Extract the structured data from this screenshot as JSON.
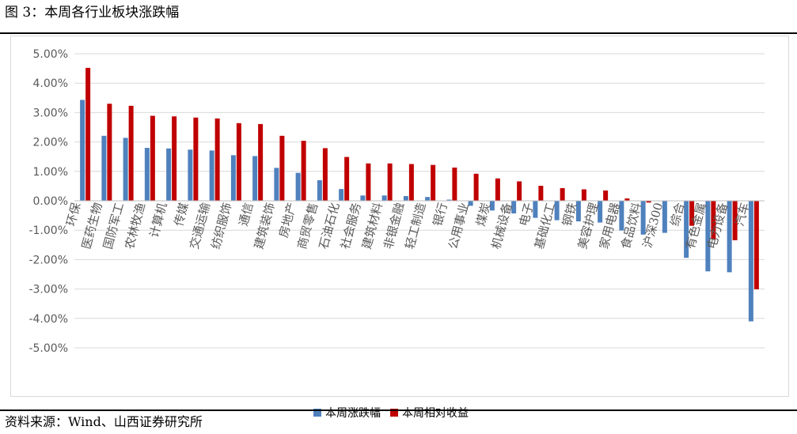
{
  "figure": {
    "title": "图 3：本周各行业板块涨跌幅",
    "source": "资料来源：Wind、山西证券研究所"
  },
  "colors": {
    "series1": "#4f81bd",
    "series2": "#c00000",
    "axis_text": "#595959",
    "grid": "#d9d9d9"
  },
  "chart_data": {
    "type": "bar",
    "title": "",
    "xlabel": "",
    "ylabel": "",
    "ylim": [
      -5,
      5
    ],
    "yticks": [
      "5.00%",
      "4.00%",
      "3.00%",
      "2.00%",
      "1.00%",
      "0.00%",
      "-1.00%",
      "-2.00%",
      "-3.00%",
      "-4.00%",
      "-5.00%"
    ],
    "grid": true,
    "legend_position": "bottom",
    "categories": [
      "环保",
      "医药生物",
      "国防军工",
      "农林牧渔",
      "计算机",
      "传媒",
      "交通运输",
      "纺织服饰",
      "通信",
      "建筑装饰",
      "房地产",
      "商贸零售",
      "石油石化",
      "社会服务",
      "建筑材料",
      "非银金融",
      "轻工制造",
      "银行",
      "公用事业",
      "煤炭",
      "机械设备",
      "电子",
      "基础化工",
      "钢铁",
      "美容护理",
      "家用电器",
      "食品饮料",
      "沪深300",
      "综合",
      "有色金属",
      "电力设备",
      "汽车"
    ],
    "series": [
      {
        "name": "本周涨跌幅",
        "values": [
          3.43,
          2.21,
          2.14,
          1.8,
          1.78,
          1.74,
          1.71,
          1.55,
          1.52,
          1.12,
          0.95,
          0.7,
          0.4,
          0.18,
          0.18,
          0.16,
          0.13,
          0.04,
          -0.17,
          -0.33,
          -0.43,
          -0.58,
          -0.66,
          -0.7,
          -0.74,
          -1.01,
          -1.15,
          -1.09,
          -1.94,
          -2.4,
          -2.43,
          -4.1
        ]
      },
      {
        "name": "本周相对收益",
        "values": [
          4.52,
          3.3,
          3.23,
          2.89,
          2.87,
          2.83,
          2.8,
          2.64,
          2.61,
          2.21,
          2.04,
          1.79,
          1.49,
          1.27,
          1.27,
          1.25,
          1.22,
          1.13,
          0.92,
          0.76,
          0.66,
          0.51,
          0.43,
          0.39,
          0.35,
          0.08,
          -0.06,
          0.0,
          -0.85,
          -1.31,
          -1.34,
          -3.01
        ]
      }
    ]
  }
}
